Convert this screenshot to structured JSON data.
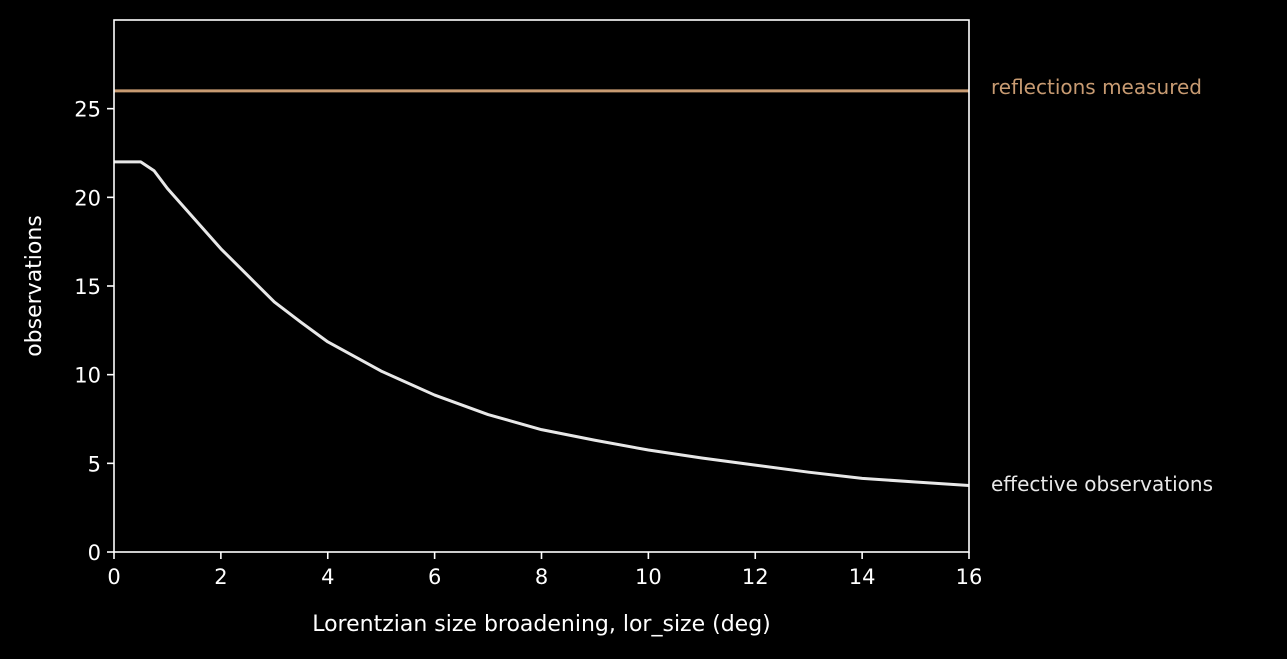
{
  "chart_data": {
    "type": "line",
    "title": "",
    "xlabel": "Lorentzian size broadening, lor_size (deg)",
    "ylabel": "observations",
    "xlim": [
      0,
      16
    ],
    "ylim": [
      0,
      30
    ],
    "xticks": [
      0,
      2,
      4,
      6,
      8,
      10,
      12,
      14,
      16
    ],
    "yticks": [
      0,
      5,
      10,
      15,
      20,
      25
    ],
    "grid": false,
    "legend": "none",
    "series": [
      {
        "name": "reflections measured",
        "color": "#c89b72",
        "x": [
          0,
          16
        ],
        "y": [
          26,
          26
        ]
      },
      {
        "name": "effective observations",
        "color": "#e8e8e8",
        "x": [
          0,
          0.25,
          0.5,
          0.75,
          1,
          1.5,
          2,
          2.5,
          3,
          3.5,
          4,
          5,
          6,
          7,
          8,
          9,
          10,
          11,
          12,
          13,
          14,
          15,
          16
        ],
        "y": [
          22,
          22,
          22,
          21.5,
          20.5,
          18.8,
          17.1,
          15.6,
          14.1,
          12.95,
          11.85,
          10.2,
          8.85,
          7.75,
          6.9,
          6.3,
          5.75,
          5.3,
          4.9,
          4.5,
          4.15,
          3.95,
          3.75
        ]
      }
    ]
  }
}
